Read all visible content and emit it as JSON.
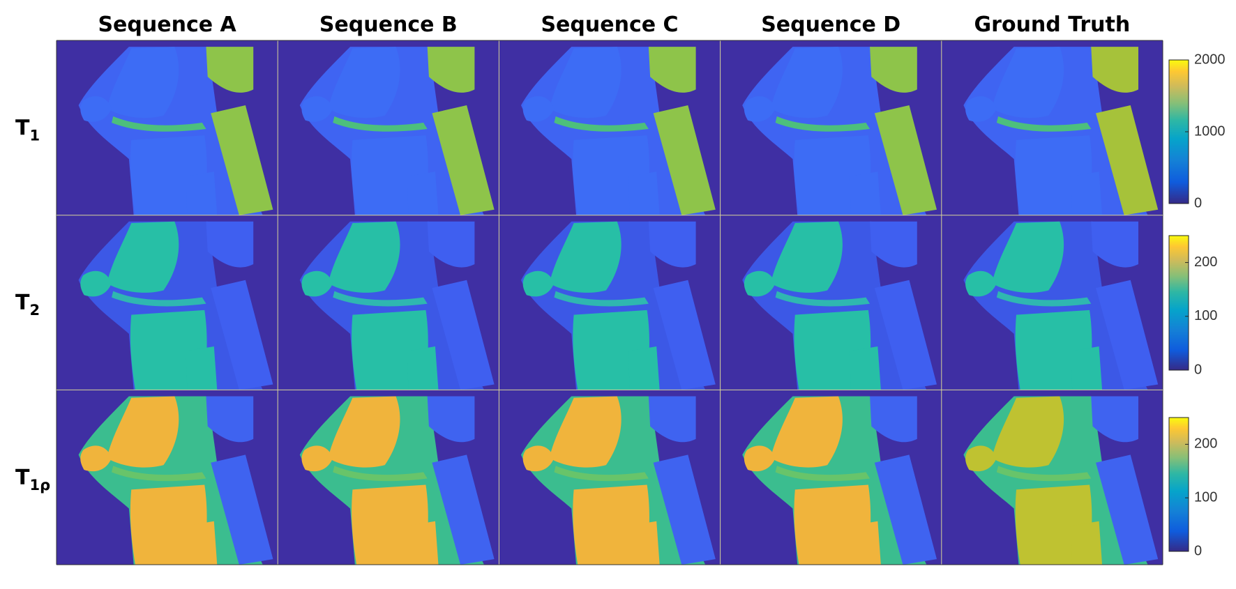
{
  "columns": [
    "Sequence A",
    "Sequence B",
    "Sequence C",
    "Sequence D",
    "Ground Truth"
  ],
  "rows": [
    {
      "label": "T",
      "subscript": "1",
      "colorbar": {
        "ylim": [
          0,
          2000
        ],
        "yticks": [
          0,
          1000,
          2000
        ]
      }
    },
    {
      "label": "T",
      "subscript": "2",
      "colorbar": {
        "ylim": [
          0,
          250
        ],
        "yticks": [
          0,
          100,
          200
        ]
      }
    },
    {
      "label": "T",
      "subscript": "1ρ",
      "colorbar": {
        "ylim": [
          0,
          250
        ],
        "yticks": [
          0,
          100,
          200
        ]
      }
    }
  ]
}
